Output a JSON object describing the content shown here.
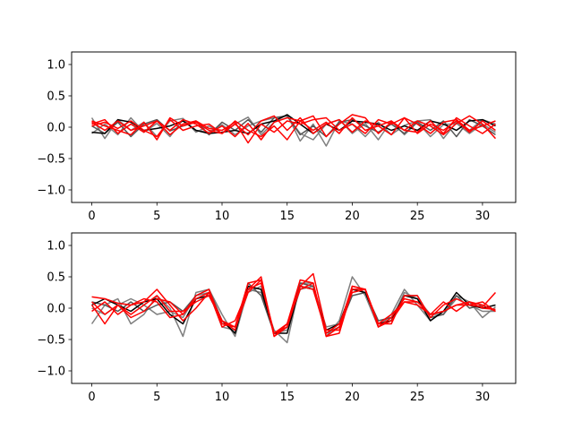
{
  "chart_data": [
    {
      "type": "line",
      "xlim": [
        -1.55,
        32.55
      ],
      "ylim": [
        -1.2,
        1.2
      ],
      "xticks": [
        0,
        5,
        10,
        15,
        20,
        25,
        30
      ],
      "xtick_labels": [
        "0",
        "5",
        "10",
        "15",
        "20",
        "25",
        "30"
      ],
      "yticks": [
        -1.0,
        -0.5,
        0.0,
        0.5,
        1.0
      ],
      "ytick_labels": [
        "−1.0",
        "−0.5",
        "0.0",
        "0.5",
        "1.0"
      ],
      "grid": false,
      "x": [
        0,
        1,
        2,
        3,
        4,
        5,
        6,
        7,
        8,
        9,
        10,
        11,
        12,
        13,
        14,
        15,
        16,
        17,
        18,
        19,
        20,
        21,
        22,
        23,
        24,
        25,
        26,
        27,
        28,
        29,
        30,
        31
      ],
      "series": [
        {
          "color": "#7f7f7f",
          "values": [
            0.15,
            -0.18,
            0.12,
            -0.05,
            0.08,
            -0.15,
            0.1,
            0.14,
            -0.08,
            0.02,
            -0.1,
            0.05,
            0.16,
            -0.12,
            0.08,
            0.2,
            -0.22,
            0.05,
            -0.3,
            0.1,
            0.05,
            -0.15,
            0.08,
            -0.12,
            0.03,
            0.1,
            0.12,
            -0.18,
            0.08,
            -0.05,
            0.12,
            0.05
          ]
        },
        {
          "color": "#7f7f7f",
          "values": [
            -0.1,
            0.05,
            -0.12,
            0.15,
            -0.08,
            0.06,
            -0.15,
            0.12,
            -0.05,
            -0.08,
            0.04,
            -0.12,
            0.02,
            0.1,
            0.15,
            0.18,
            -0.1,
            -0.2,
            0.05,
            0.12,
            -0.1,
            0.06,
            -0.2,
            0.1,
            -0.12,
            0.08,
            -0.15,
            0.04,
            0.06,
            -0.1,
            0.05,
            -0.08
          ]
        },
        {
          "color": "#555555",
          "values": [
            0.02,
            -0.1,
            0.08,
            -0.15,
            0.05,
            0.12,
            -0.06,
            0.02,
            0.1,
            -0.12,
            0.08,
            -0.05,
            0.12,
            -0.08,
            0.15,
            0.18,
            -0.12,
            0.02,
            -0.15,
            0.08,
            0.12,
            0.02,
            -0.08,
            0.05,
            -0.1,
            0.08,
            -0.05,
            0.1,
            -0.15,
            0.12,
            0.02,
            -0.12
          ]
        },
        {
          "color": "#000000",
          "values": [
            -0.08,
            -0.1,
            0.12,
            0.08,
            -0.05,
            -0.02,
            0.02,
            0.1,
            -0.05,
            -0.1,
            -0.08,
            -0.05,
            -0.1,
            0.05,
            0.1,
            0.2,
            0.05,
            -0.1,
            0.05,
            -0.05,
            0.1,
            0.08,
            0.05,
            -0.05,
            0.02,
            -0.05,
            0.1,
            0.05,
            -0.05,
            0.1,
            0.12,
            0.02
          ]
        },
        {
          "color": "#ff0000",
          "values": [
            0.05,
            0.12,
            -0.1,
            0.05,
            -0.08,
            0.1,
            -0.05,
            0.12,
            0.05,
            -0.1,
            0.02,
            -0.15,
            0.06,
            -0.2,
            0.08,
            0.15,
            0.1,
            0.18,
            -0.15,
            0.05,
            0.2,
            0.15,
            -0.1,
            0.08,
            -0.05,
            0.1,
            0.02,
            -0.12,
            0.06,
            0.18,
            0.05,
            -0.18
          ]
        },
        {
          "color": "#ff0000",
          "values": [
            0.1,
            0.02,
            -0.05,
            -0.12,
            0.08,
            -0.2,
            0.15,
            0.02,
            0.08,
            -0.05,
            -0.1,
            0.05,
            -0.12,
            0.1,
            0.18,
            -0.05,
            0.15,
            -0.1,
            0.05,
            0.12,
            -0.08,
            0.1,
            0.02,
            -0.12,
            0.15,
            0.05,
            -0.1,
            0.08,
            0.12,
            -0.05,
            0.02,
            0.1
          ]
        },
        {
          "color": "#ff0000",
          "values": [
            0.08,
            -0.05,
            0.1,
            -0.05,
            0.02,
            0.1,
            -0.12,
            0.05,
            0.1,
            -0.02,
            -0.05,
            0.08,
            -0.25,
            0.05,
            -0.08,
            0.1,
            0.05,
            0.12,
            0.15,
            -0.05,
            0.05,
            -0.1,
            0.12,
            0.05,
            0.15,
            -0.1,
            0.05,
            -0.05,
            0.1,
            -0.08,
            0.1,
            -0.05
          ]
        },
        {
          "color": "#ff0000",
          "values": [
            0.02,
            0.08,
            -0.02,
            0.1,
            -0.05,
            -0.15,
            0.12,
            -0.05,
            0.02,
            0.05,
            -0.1,
            0.1,
            -0.05,
            -0.15,
            0.02,
            -0.2,
            0.1,
            -0.05,
            0.08,
            -0.1,
            0.15,
            -0.05,
            0.02,
            0.1,
            -0.05,
            -0.08,
            0.1,
            -0.1,
            0.15,
            0.02,
            -0.1,
            0.05
          ]
        }
      ]
    },
    {
      "type": "line",
      "xlim": [
        -1.55,
        32.55
      ],
      "ylim": [
        -1.2,
        1.2
      ],
      "xticks": [
        0,
        5,
        10,
        15,
        20,
        25,
        30
      ],
      "xtick_labels": [
        "0",
        "5",
        "10",
        "15",
        "20",
        "25",
        "30"
      ],
      "yticks": [
        -1.0,
        -0.5,
        0.0,
        0.5,
        1.0
      ],
      "ytick_labels": [
        "−1.0",
        "−0.5",
        "0.0",
        "0.5",
        "1.0"
      ],
      "grid": false,
      "x": [
        0,
        1,
        2,
        3,
        4,
        5,
        6,
        7,
        8,
        9,
        10,
        11,
        12,
        13,
        14,
        15,
        16,
        17,
        18,
        19,
        20,
        21,
        22,
        23,
        24,
        25,
        26,
        27,
        28,
        29,
        30,
        31
      ],
      "series": [
        {
          "color": "#7f7f7f",
          "values": [
            -0.25,
            0.05,
            0.15,
            -0.25,
            -0.1,
            0.2,
            0.0,
            -0.45,
            0.25,
            0.3,
            -0.1,
            -0.45,
            0.3,
            0.25,
            -0.35,
            -0.55,
            0.4,
            0.4,
            -0.45,
            -0.2,
            0.5,
            0.2,
            -0.3,
            -0.1,
            0.3,
            0.05,
            -0.2,
            -0.05,
            0.2,
            0.1,
            -0.15,
            0.02
          ]
        },
        {
          "color": "#7f7f7f",
          "values": [
            0.0,
            -0.1,
            0.05,
            0.15,
            0.05,
            -0.1,
            -0.05,
            -0.15,
            0.2,
            0.25,
            -0.3,
            -0.35,
            0.25,
            0.35,
            -0.4,
            -0.35,
            0.3,
            0.35,
            -0.3,
            -0.25,
            0.3,
            0.3,
            -0.25,
            -0.2,
            0.25,
            0.15,
            -0.1,
            -0.1,
            0.15,
            0.05,
            -0.05,
            -0.05
          ]
        },
        {
          "color": "#555555",
          "values": [
            0.1,
            0.05,
            -0.05,
            0.1,
            -0.05,
            0.05,
            0.1,
            -0.05,
            0.2,
            0.3,
            -0.2,
            -0.4,
            0.4,
            0.2,
            -0.4,
            -0.3,
            0.4,
            0.35,
            -0.4,
            -0.3,
            0.2,
            0.25,
            -0.2,
            -0.15,
            0.2,
            0.2,
            -0.15,
            -0.1,
            0.2,
            0.0,
            0.05,
            -0.05
          ]
        },
        {
          "color": "#000000",
          "values": [
            0.05,
            0.15,
            0.05,
            -0.05,
            0.1,
            0.15,
            -0.1,
            -0.25,
            0.15,
            0.2,
            -0.2,
            -0.4,
            0.35,
            0.3,
            -0.4,
            -0.4,
            0.35,
            0.3,
            -0.35,
            -0.25,
            0.3,
            0.25,
            -0.25,
            -0.2,
            0.2,
            0.15,
            -0.2,
            -0.05,
            0.25,
            0.05,
            0.0,
            0.05
          ]
        },
        {
          "color": "#ff0000",
          "values": [
            0.18,
            0.15,
            0.08,
            0.05,
            0.1,
            0.3,
            0.05,
            -0.2,
            0.0,
            0.25,
            -0.3,
            -0.2,
            0.3,
            0.5,
            -0.45,
            -0.3,
            0.35,
            0.55,
            -0.35,
            -0.35,
            0.35,
            0.3,
            -0.25,
            -0.25,
            0.2,
            0.2,
            -0.15,
            0.05,
            0.15,
            0.05,
            0.02,
            0.25
          ]
        },
        {
          "color": "#ff0000",
          "values": [
            -0.05,
            0.1,
            -0.1,
            0.05,
            0.15,
            0.1,
            -0.15,
            -0.1,
            0.2,
            0.3,
            -0.25,
            -0.3,
            0.4,
            0.45,
            -0.45,
            -0.25,
            0.45,
            0.4,
            -0.45,
            -0.4,
            0.3,
            0.3,
            -0.3,
            -0.15,
            0.15,
            0.1,
            -0.1,
            0.1,
            -0.05,
            0.1,
            0.05,
            -0.05
          ]
        },
        {
          "color": "#ff0000",
          "values": [
            0.05,
            -0.25,
            0.05,
            -0.1,
            0.05,
            0.2,
            -0.05,
            -0.05,
            0.1,
            0.2,
            -0.2,
            -0.35,
            0.3,
            0.4,
            -0.4,
            -0.3,
            0.35,
            0.3,
            -0.4,
            -0.25,
            0.25,
            0.3,
            -0.3,
            -0.2,
            0.1,
            0.05,
            -0.1,
            -0.05,
            0.05,
            0.1,
            0.0,
            -0.02
          ]
        },
        {
          "color": "#ff0000",
          "values": [
            0.1,
            -0.1,
            0.05,
            -0.15,
            -0.05,
            0.15,
            0.1,
            -0.1,
            0.15,
            0.25,
            -0.2,
            -0.3,
            0.25,
            0.45,
            -0.4,
            -0.25,
            0.3,
            0.4,
            -0.45,
            -0.3,
            0.35,
            0.3,
            -0.25,
            -0.1,
            0.1,
            0.1,
            -0.1,
            -0.05,
            0.05,
            0.05,
            0.1,
            -0.05
          ]
        }
      ]
    }
  ]
}
